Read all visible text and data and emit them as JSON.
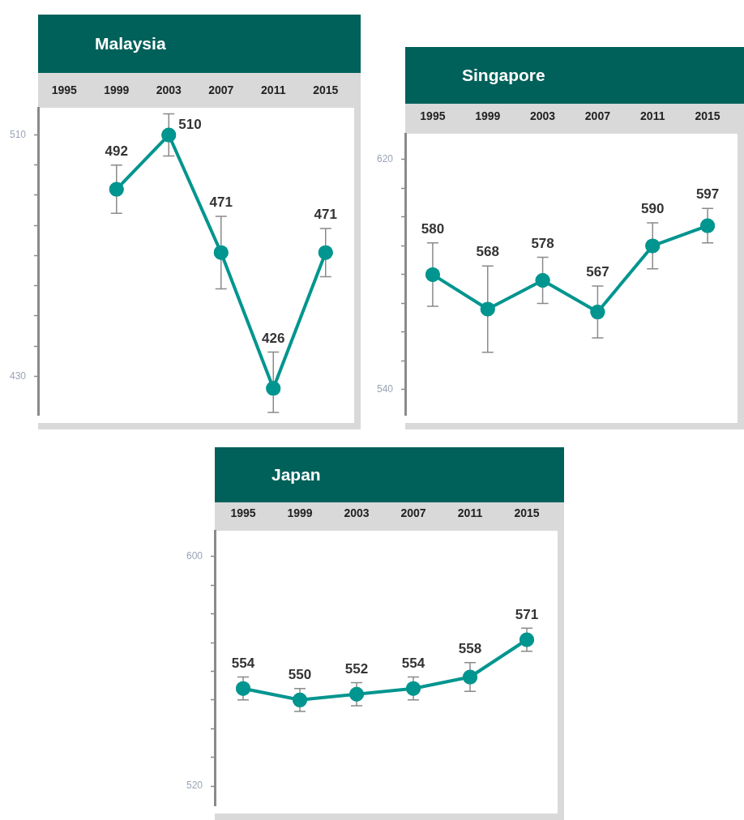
{
  "chart_data": [
    {
      "type": "line",
      "title": "Malaysia",
      "categories": [
        "1995",
        "1999",
        "2003",
        "2007",
        "2011",
        "2015"
      ],
      "series": [
        {
          "color": "#00958f",
          "values": [
            null,
            492,
            510,
            471,
            426,
            471
          ],
          "errors": [
            null,
            8,
            7,
            12,
            [
              418,
              438
            ],
            8
          ]
        }
      ],
      "ylim": [
        417,
        519
      ],
      "yticks": [
        430,
        {
          "value": 440,
          "label": null
        },
        {
          "value": 450,
          "label": null
        },
        {
          "value": 460,
          "label": null
        },
        {
          "value": 470,
          "label": null
        },
        {
          "value": 480,
          "label": null
        },
        {
          "value": 490,
          "label": null
        },
        {
          "value": 500,
          "label": null
        },
        510
      ],
      "marker": "circle",
      "data_labels": true,
      "grid": false,
      "legend": false
    },
    {
      "type": "line",
      "title": "Singapore",
      "categories": [
        "1995",
        "1999",
        "2003",
        "2007",
        "2011",
        "2015"
      ],
      "series": [
        {
          "color": "#00958f",
          "values": [
            580,
            568,
            578,
            567,
            590,
            597
          ],
          "errors": [
            11,
            15,
            8,
            9,
            8,
            6
          ]
        }
      ],
      "ylim": [
        531,
        629
      ],
      "yticks": [
        540,
        {
          "value": 550,
          "label": null
        },
        {
          "value": 560,
          "label": null
        },
        {
          "value": 570,
          "label": null
        },
        {
          "value": 580,
          "label": null
        },
        {
          "value": 590,
          "label": null
        },
        {
          "value": 600,
          "label": null
        },
        {
          "value": 610,
          "label": null
        },
        620
      ],
      "marker": "circle",
      "data_labels": true,
      "grid": false,
      "legend": false
    },
    {
      "type": "line",
      "title": "Japan",
      "categories": [
        "1995",
        "1999",
        "2003",
        "2007",
        "2011",
        "2015"
      ],
      "series": [
        {
          "color": "#00958f",
          "values": [
            554,
            550,
            552,
            554,
            558,
            571
          ],
          "errors": [
            4,
            4,
            4,
            4,
            5,
            4
          ]
        }
      ],
      "ylim": [
        513,
        609
      ],
      "yticks": [
        520,
        {
          "value": 530,
          "label": null
        },
        {
          "value": 540,
          "label": null
        },
        {
          "value": 550,
          "label": null
        },
        {
          "value": 560,
          "label": null
        },
        {
          "value": 570,
          "label": null
        },
        {
          "value": 580,
          "label": null
        },
        {
          "value": 590,
          "label": null
        },
        600
      ],
      "marker": "circle",
      "data_labels": true,
      "grid": false,
      "legend": false
    }
  ]
}
